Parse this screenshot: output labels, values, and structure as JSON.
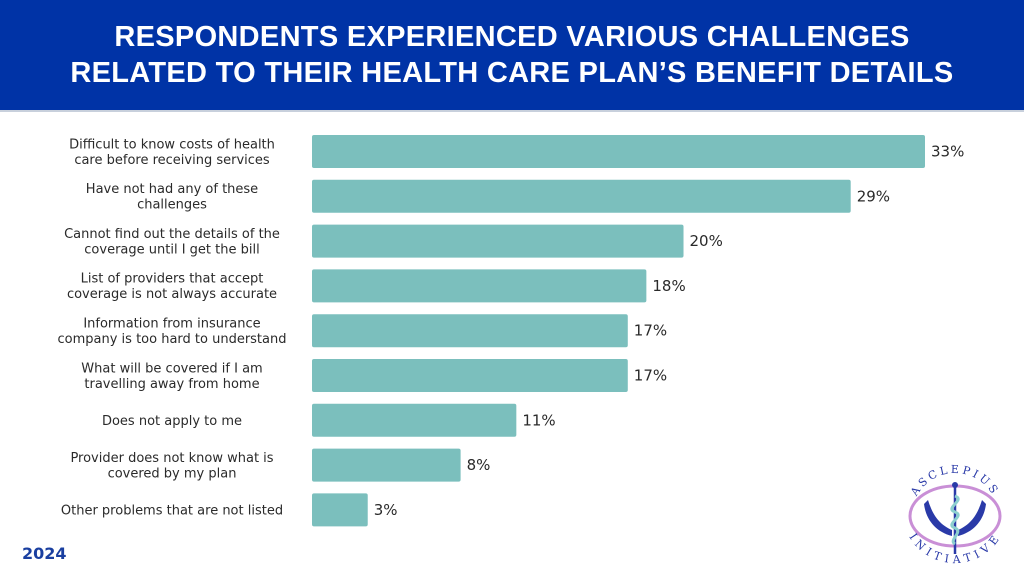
{
  "header": {
    "title_line1": "RESPONDENTS EXPERIENCED VARIOUS CHALLENGES",
    "title_line2": "RELATED TO THEIR HEALTH CARE PLAN’S BENEFIT DETAILS",
    "background_color": "#0033a6"
  },
  "footer": {
    "year": "2024"
  },
  "logo": {
    "top_text": "ASCLEPIUS",
    "bottom_text": "INITIATIVE"
  },
  "chart_data": {
    "type": "bar",
    "orientation": "horizontal",
    "title": "RESPONDENTS EXPERIENCED VARIOUS CHALLENGES RELATED TO THEIR HEALTH CARE PLAN’S BENEFIT DETAILS",
    "xlabel": "",
    "ylabel": "",
    "unit": "%",
    "bar_color": "#7bbfbd",
    "grid": false,
    "legend": "none",
    "xlim": [
      0,
      33
    ],
    "categories": [
      [
        "Difficult to know costs of health",
        "care before receiving services"
      ],
      [
        "Have not had any of these",
        "challenges"
      ],
      [
        "Cannot find out the details of the",
        "coverage until I get the bill"
      ],
      [
        "List of providers that accept",
        "coverage is not always accurate"
      ],
      [
        "Information from insurance",
        "company is too hard to understand"
      ],
      [
        "What will be covered if I am",
        "travelling away from home"
      ],
      [
        "Does not apply to me"
      ],
      [
        "Provider does not know what is",
        "covered by my plan"
      ],
      [
        "Other problems that are not listed"
      ]
    ],
    "values": [
      33,
      29,
      20,
      18,
      17,
      17,
      11,
      8,
      3
    ],
    "data_labels": [
      "33%",
      "29%",
      "20%",
      "18%",
      "17%",
      "17%",
      "11%",
      "8%",
      "3%"
    ]
  }
}
